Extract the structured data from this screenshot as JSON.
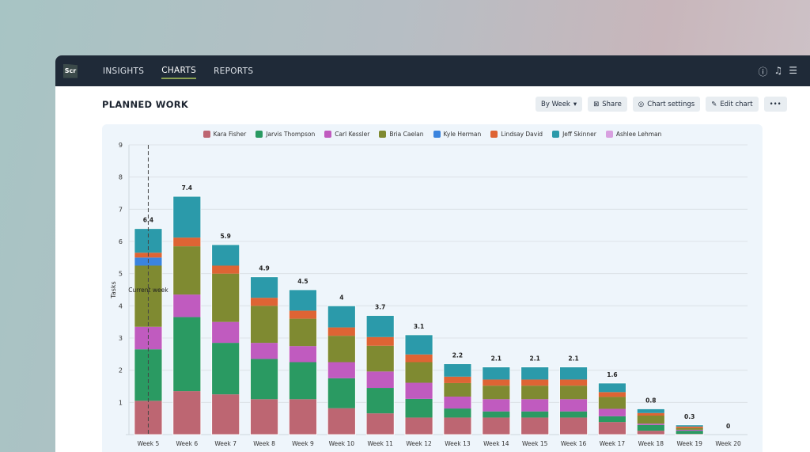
{
  "nav": {
    "logo": "Scr",
    "items": [
      "INSIGHTS",
      "CHARTS",
      "REPORTS"
    ],
    "active": "CHARTS",
    "icons": [
      "help-icon",
      "bell-icon",
      "menu-icon"
    ]
  },
  "page": {
    "title": "PLANNED WORK"
  },
  "toolbar": {
    "period": "By Week",
    "share": "Share",
    "settings": "Chart settings",
    "edit": "Edit chart",
    "more": "•••"
  },
  "chart_data": {
    "type": "bar",
    "stacked": true,
    "ylabel": "Tasks",
    "ylim": [
      0,
      9
    ],
    "yticks": [
      1,
      2,
      3,
      4,
      5,
      6,
      7,
      8,
      9
    ],
    "grid": true,
    "legend": "top",
    "annotation": {
      "label": "Current week",
      "category": "Week 5"
    },
    "categories": [
      "Week 5",
      "Week 6",
      "Week 7",
      "Week 8",
      "Week 9",
      "Week 10",
      "Week 11",
      "Week 12",
      "Week 13",
      "Week 14",
      "Week 15",
      "Week 16",
      "Week 17",
      "Week 18",
      "Week 19",
      "Week 20"
    ],
    "totals": [
      6.4,
      7.4,
      5.9,
      4.9,
      4.5,
      4,
      3.7,
      3.1,
      2.2,
      2.1,
      2.1,
      2.1,
      1.6,
      0.8,
      0.3,
      0
    ],
    "series": [
      {
        "name": "Kara Fisher",
        "color": "#bd6672",
        "values": [
          1.05,
          1.35,
          1.25,
          1.1,
          1.1,
          0.82,
          0.66,
          0.53,
          0.53,
          0.53,
          0.53,
          0.53,
          0.39,
          0.12,
          0.02,
          0
        ]
      },
      {
        "name": "Jarvis Thompson",
        "color": "#2a9a62",
        "values": [
          1.6,
          2.3,
          1.6,
          1.25,
          1.15,
          0.93,
          0.79,
          0.58,
          0.28,
          0.19,
          0.19,
          0.19,
          0.18,
          0.18,
          0.1,
          0
        ]
      },
      {
        "name": "Carl Kessler",
        "color": "#c05bbf",
        "values": [
          0.7,
          0.7,
          0.65,
          0.5,
          0.5,
          0.5,
          0.51,
          0.5,
          0.37,
          0.38,
          0.38,
          0.38,
          0.23,
          0.04,
          0.03,
          0
        ]
      },
      {
        "name": "Bria Caelan",
        "color": "#7f8a31",
        "values": [
          1.9,
          1.5,
          1.5,
          1.15,
          0.85,
          0.82,
          0.8,
          0.64,
          0.42,
          0.42,
          0.42,
          0.42,
          0.37,
          0.25,
          0.05,
          0
        ]
      },
      {
        "name": "Kyle Herman",
        "color": "#3a84de",
        "values": [
          0.25,
          0,
          0,
          0,
          0,
          0,
          0,
          0,
          0,
          0,
          0,
          0,
          0,
          0,
          0,
          0
        ]
      },
      {
        "name": "Lindsay David",
        "color": "#de6434",
        "values": [
          0.15,
          0.27,
          0.25,
          0.25,
          0.25,
          0.26,
          0.27,
          0.24,
          0.2,
          0.19,
          0.19,
          0.19,
          0.15,
          0.08,
          0.05,
          0
        ]
      },
      {
        "name": "Jeff Skinner",
        "color": "#2b9aaa",
        "values": [
          0.75,
          1.28,
          0.65,
          0.65,
          0.65,
          0.67,
          0.67,
          0.61,
          0.4,
          0.39,
          0.39,
          0.39,
          0.28,
          0.13,
          0.05,
          0
        ]
      },
      {
        "name": "Ashlee Lehman",
        "color": "#d8a0e0",
        "values": [
          0,
          0,
          0,
          0,
          0,
          0,
          0,
          0,
          0,
          0,
          0,
          0,
          0,
          0,
          0,
          0
        ]
      }
    ]
  }
}
